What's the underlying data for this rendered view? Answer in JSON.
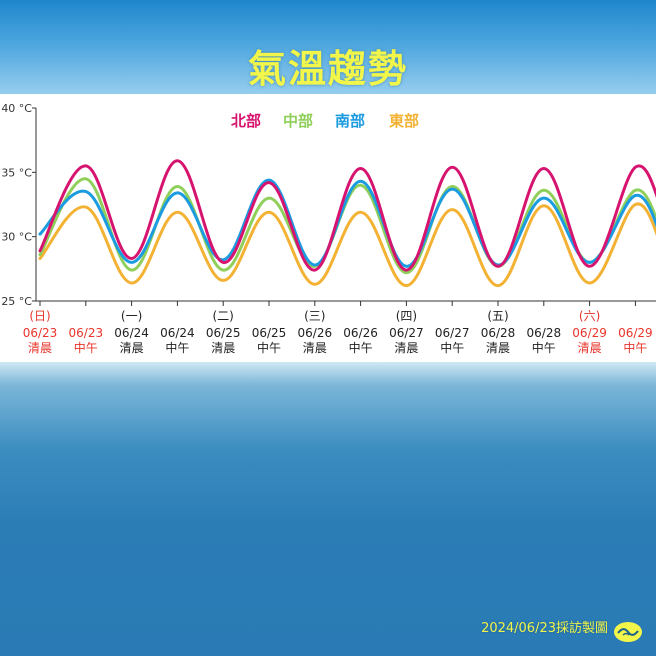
{
  "page": {
    "title": "氣溫趨勢",
    "footer_text": "2024/06/23採訪製圖",
    "logo_icon": "wave-logo-icon"
  },
  "colors": {
    "title": "#f2f54a",
    "weekend_label": "#e8342b",
    "weekday_label": "#222222"
  },
  "chart_data": {
    "type": "line",
    "ylabel": "",
    "xlabel": "",
    "ylim": [
      25,
      40
    ],
    "y_ticks": [
      {
        "value": 40,
        "label": "40 °C"
      },
      {
        "value": 35,
        "label": "35 °C"
      },
      {
        "value": 30,
        "label": "30 °C"
      },
      {
        "value": 25,
        "label": "25 °C"
      }
    ],
    "grid": false,
    "legend_position": "top-center",
    "categories": [
      {
        "day": "(日)",
        "date": "06/23",
        "period": "清晨",
        "red": true
      },
      {
        "day": "",
        "date": "06/23",
        "period": "中午",
        "red": true
      },
      {
        "day": "(一)",
        "date": "06/24",
        "period": "清晨",
        "red": false
      },
      {
        "day": "",
        "date": "06/24",
        "period": "中午",
        "red": false
      },
      {
        "day": "(二)",
        "date": "06/25",
        "period": "清晨",
        "red": false
      },
      {
        "day": "",
        "date": "06/25",
        "period": "中午",
        "red": false
      },
      {
        "day": "(三)",
        "date": "06/26",
        "period": "清晨",
        "red": false
      },
      {
        "day": "",
        "date": "06/26",
        "period": "中午",
        "red": false
      },
      {
        "day": "(四)",
        "date": "06/27",
        "period": "清晨",
        "red": false
      },
      {
        "day": "",
        "date": "06/27",
        "period": "中午",
        "red": false
      },
      {
        "day": "(五)",
        "date": "06/28",
        "period": "清晨",
        "red": false
      },
      {
        "day": "",
        "date": "06/28",
        "period": "中午",
        "red": false
      },
      {
        "day": "(六)",
        "date": "06/29",
        "period": "清晨",
        "red": true
      },
      {
        "day": "",
        "date": "06/29",
        "period": "中午",
        "red": true
      }
    ],
    "series": [
      {
        "name": "北部",
        "color": "#d6146f",
        "values": [
          28.9,
          35.5,
          28.3,
          35.9,
          28.0,
          34.2,
          27.4,
          35.3,
          27.4,
          35.4,
          27.7,
          35.3,
          27.7,
          35.4
        ]
      },
      {
        "name": "中部",
        "color": "#8fcf5a",
        "values": [
          28.6,
          34.5,
          27.4,
          33.9,
          27.4,
          33.0,
          27.7,
          34.0,
          27.2,
          33.9,
          27.7,
          33.6,
          28.0,
          33.6
        ]
      },
      {
        "name": "南部",
        "color": "#1b9be0",
        "values": [
          30.2,
          33.5,
          28.0,
          33.4,
          28.2,
          34.4,
          27.8,
          34.3,
          27.7,
          33.7,
          27.8,
          33.0,
          28.0,
          33.2
        ]
      },
      {
        "name": "東部",
        "color": "#f3b234",
        "values": [
          28.3,
          32.3,
          26.4,
          31.9,
          26.6,
          31.9,
          26.3,
          31.9,
          26.2,
          32.1,
          26.2,
          32.4,
          26.4,
          32.5
        ]
      }
    ]
  }
}
